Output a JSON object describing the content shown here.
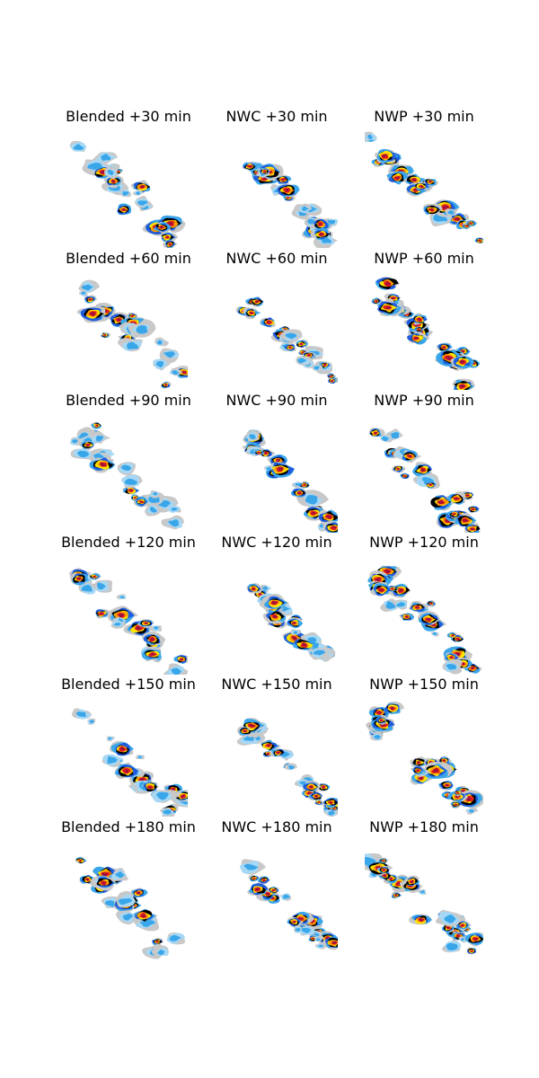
{
  "chart_data": {
    "type": "heatmap",
    "rows": [
      {
        "lead": "+30 min",
        "titles": [
          "Blended +30 min",
          "NWC +30 min",
          "NWP +30 min"
        ]
      },
      {
        "lead": "+60 min",
        "titles": [
          "Blended +60 min",
          "NWC +60 min",
          "NWP +60 min"
        ]
      },
      {
        "lead": "+90 min",
        "titles": [
          "Blended +90 min",
          "NWC +90 min",
          "NWP +90 min"
        ]
      },
      {
        "lead": "+120 min",
        "titles": [
          "Blended +120 min",
          "NWC +120 min",
          "NWP +120 min"
        ]
      },
      {
        "lead": "+150 min",
        "titles": [
          "Blended +150 min",
          "NWC +150 min",
          "NWP +150 min"
        ]
      },
      {
        "lead": "+180 min",
        "titles": [
          "Blended +180 min",
          "NWC +180 min",
          "NWP +180 min"
        ]
      }
    ],
    "columns": [
      "Blended",
      "NWC",
      "NWP"
    ],
    "colormap": [
      "#c8c8c8",
      "#a6d8f5",
      "#3aa6ea",
      "#1f5ddc",
      "#0a0a7a",
      "#000000",
      "#ffe600",
      "#ff9900",
      "#e51c1c",
      "#a0103a",
      "#8a008a"
    ]
  }
}
